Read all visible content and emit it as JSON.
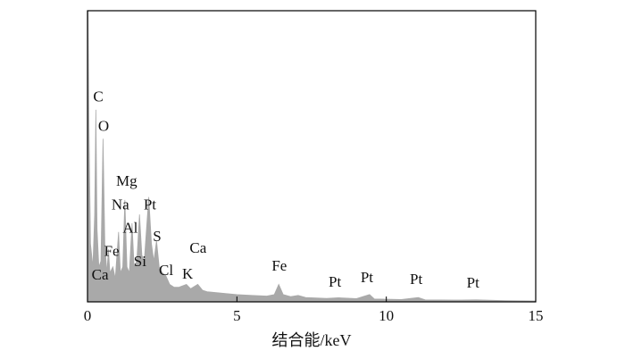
{
  "chart_data": {
    "type": "area",
    "x_label": "结合能/keV",
    "x": [
      0,
      0.02,
      0.05,
      0.1,
      0.18,
      0.24,
      0.28,
      0.32,
      0.38,
      0.45,
      0.52,
      0.58,
      0.65,
      0.7,
      0.75,
      0.85,
      0.93,
      1.04,
      1.1,
      1.18,
      1.25,
      1.32,
      1.4,
      1.49,
      1.56,
      1.65,
      1.74,
      1.82,
      1.9,
      2.05,
      2.14,
      2.22,
      2.31,
      2.4,
      2.5,
      2.62,
      2.75,
      2.9,
      3.05,
      3.31,
      3.45,
      3.69,
      3.85,
      4.0,
      4.5,
      5.0,
      5.5,
      6.0,
      6.25,
      6.4,
      6.55,
      6.8,
      7.05,
      7.3,
      8.0,
      8.4,
      9.0,
      9.44,
      9.6,
      10.5,
      11.07,
      11.3,
      12.5,
      13.0,
      14.0,
      15
    ],
    "values": [
      0,
      100,
      60,
      20,
      12,
      30,
      66,
      25,
      12,
      14,
      56,
      20,
      10,
      18,
      10,
      12,
      8,
      24,
      10,
      12,
      35,
      12,
      10,
      27,
      12,
      14,
      30,
      16,
      14,
      36,
      20,
      14,
      21,
      12,
      10,
      9,
      6,
      5,
      5,
      6,
      4.5,
      6,
      4,
      3.5,
      3,
      2.5,
      2.2,
      2,
      2.5,
      6,
      2.5,
      1.8,
      2.2,
      1.5,
      1.2,
      1.4,
      1.1,
      2.5,
      1,
      0.8,
      1.5,
      0.7,
      0.6,
      0.7,
      0.4,
      0.3
    ],
    "color": "#a9a9a9",
    "xlim": [
      0,
      15
    ],
    "xticks": [
      0,
      5,
      10,
      15
    ],
    "ylim": [
      0,
      100
    ],
    "annotations": [
      {
        "text": "C",
        "x": 0.36,
        "y": 70
      },
      {
        "text": "O",
        "x": 0.54,
        "y": 60
      },
      {
        "text": "Mg",
        "x": 1.31,
        "y": 41
      },
      {
        "text": "Na",
        "x": 1.1,
        "y": 33
      },
      {
        "text": "Pt",
        "x": 2.09,
        "y": 33
      },
      {
        "text": "Al",
        "x": 1.43,
        "y": 25
      },
      {
        "text": "S",
        "x": 2.33,
        "y": 22
      },
      {
        "text": "Ca",
        "x": 3.7,
        "y": 18
      },
      {
        "text": "Fe",
        "x": 0.81,
        "y": 17
      },
      {
        "text": "Si",
        "x": 1.76,
        "y": 13.5
      },
      {
        "text": "Cl",
        "x": 2.63,
        "y": 10.4
      },
      {
        "text": "K",
        "x": 3.35,
        "y": 9.2
      },
      {
        "text": "Ca",
        "x": 0.42,
        "y": 8.9
      },
      {
        "text": "Fe",
        "x": 6.42,
        "y": 12
      },
      {
        "text": "Pt",
        "x": 8.28,
        "y": 6.4
      },
      {
        "text": "Pt",
        "x": 9.35,
        "y": 8
      },
      {
        "text": "Pt",
        "x": 11.0,
        "y": 7.4
      },
      {
        "text": "Pt",
        "x": 12.9,
        "y": 6.1
      }
    ]
  }
}
